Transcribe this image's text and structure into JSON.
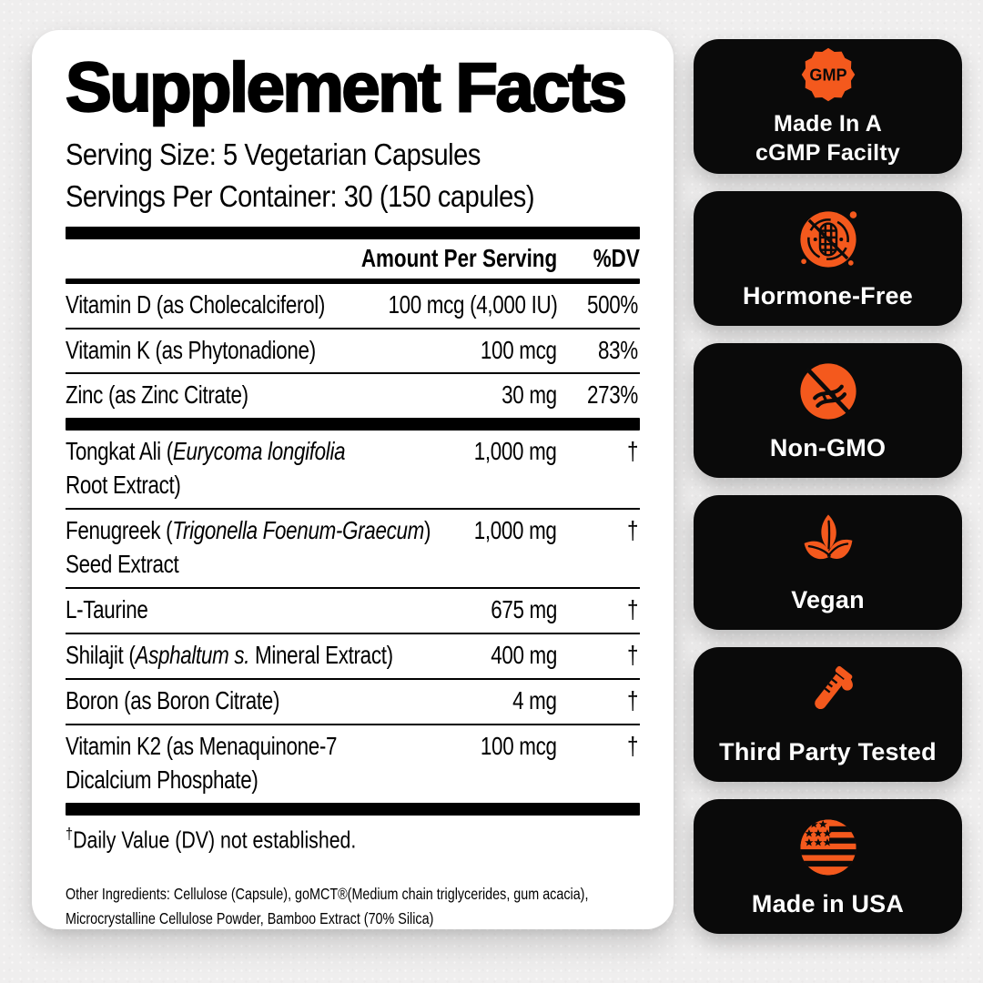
{
  "colors": {
    "accent_orange": "#f4591d",
    "badge_bg": "#0a0a0a",
    "panel_bg": "#ffffff",
    "page_bg": "#efeeee"
  },
  "panel": {
    "title": "Supplement Facts",
    "serving_size": "Serving Size: 5 Vegetarian Capsules",
    "servings_per_container": "Servings Per Container: 30 (150 capules)",
    "header": {
      "amount": "Amount Per Serving",
      "dv": "%DV"
    },
    "sections": [
      {
        "rows": [
          {
            "name": [
              {
                "t": "Vitamin D (as Cholecalciferol)"
              }
            ],
            "amount": "100 mcg (4,000 IU)",
            "dv": "500%"
          },
          {
            "name": [
              {
                "t": "Vitamin K (as Phytonadione)"
              }
            ],
            "amount": "100 mcg",
            "dv": "83%"
          },
          {
            "name": [
              {
                "t": "Zinc (as Zinc Citrate)"
              }
            ],
            "amount": "30 mg",
            "dv": "273%"
          }
        ]
      },
      {
        "rows": [
          {
            "name": [
              {
                "t": "Tongkat Ali ("
              },
              {
                "t": "Eurycoma longifolia",
                "i": true
              },
              {
                "t": "\nRoot Extract)"
              }
            ],
            "amount": "1,000 mg",
            "dv": "†"
          },
          {
            "name": [
              {
                "t": "Fenugreek ("
              },
              {
                "t": "Trigonella Foenum-Graecum",
                "i": true
              },
              {
                "t": ")"
              },
              {
                "t": "\nSeed Extract"
              }
            ],
            "amount": "1,000 mg",
            "dv": "†"
          },
          {
            "name": [
              {
                "t": "L-Taurine"
              }
            ],
            "amount": "675 mg",
            "dv": "†"
          },
          {
            "name": [
              {
                "t": "Shilajit ("
              },
              {
                "t": "Asphaltum s.",
                "i": true
              },
              {
                "t": " Mineral Extract)"
              }
            ],
            "amount": "400 mg",
            "dv": "†"
          },
          {
            "name": [
              {
                "t": "Boron (as Boron Citrate)"
              }
            ],
            "amount": "4 mg",
            "dv": "†"
          },
          {
            "name": [
              {
                "t": "Vitamin K2 (as Menaquinone-7\nDicalcium Phosphate)"
              }
            ],
            "amount": "100 mcg",
            "dv": "†"
          }
        ]
      }
    ],
    "footnote": {
      "dagger": "†",
      "text": "Daily Value (DV) not established."
    },
    "other_ingredients": "Other Ingredients: Cellulose (Capsule), goMCT®(Medium chain triglycerides, gum acacia),\nMicrocrystalline Cellulose Powder, Bamboo Extract (70% Silica)"
  },
  "badges": [
    {
      "icon": "gmp-seal-icon",
      "icon_text": "GMP",
      "label": "Made In A\ncGMP Facilty"
    },
    {
      "icon": "hormone-free-icon",
      "label": "Hormone-Free"
    },
    {
      "icon": "non-gmo-icon",
      "label": "Non-GMO"
    },
    {
      "icon": "vegan-leaf-icon",
      "label": "Vegan"
    },
    {
      "icon": "test-tube-icon",
      "label": "Third Party Tested"
    },
    {
      "icon": "usa-flag-icon",
      "label": "Made in USA"
    }
  ]
}
